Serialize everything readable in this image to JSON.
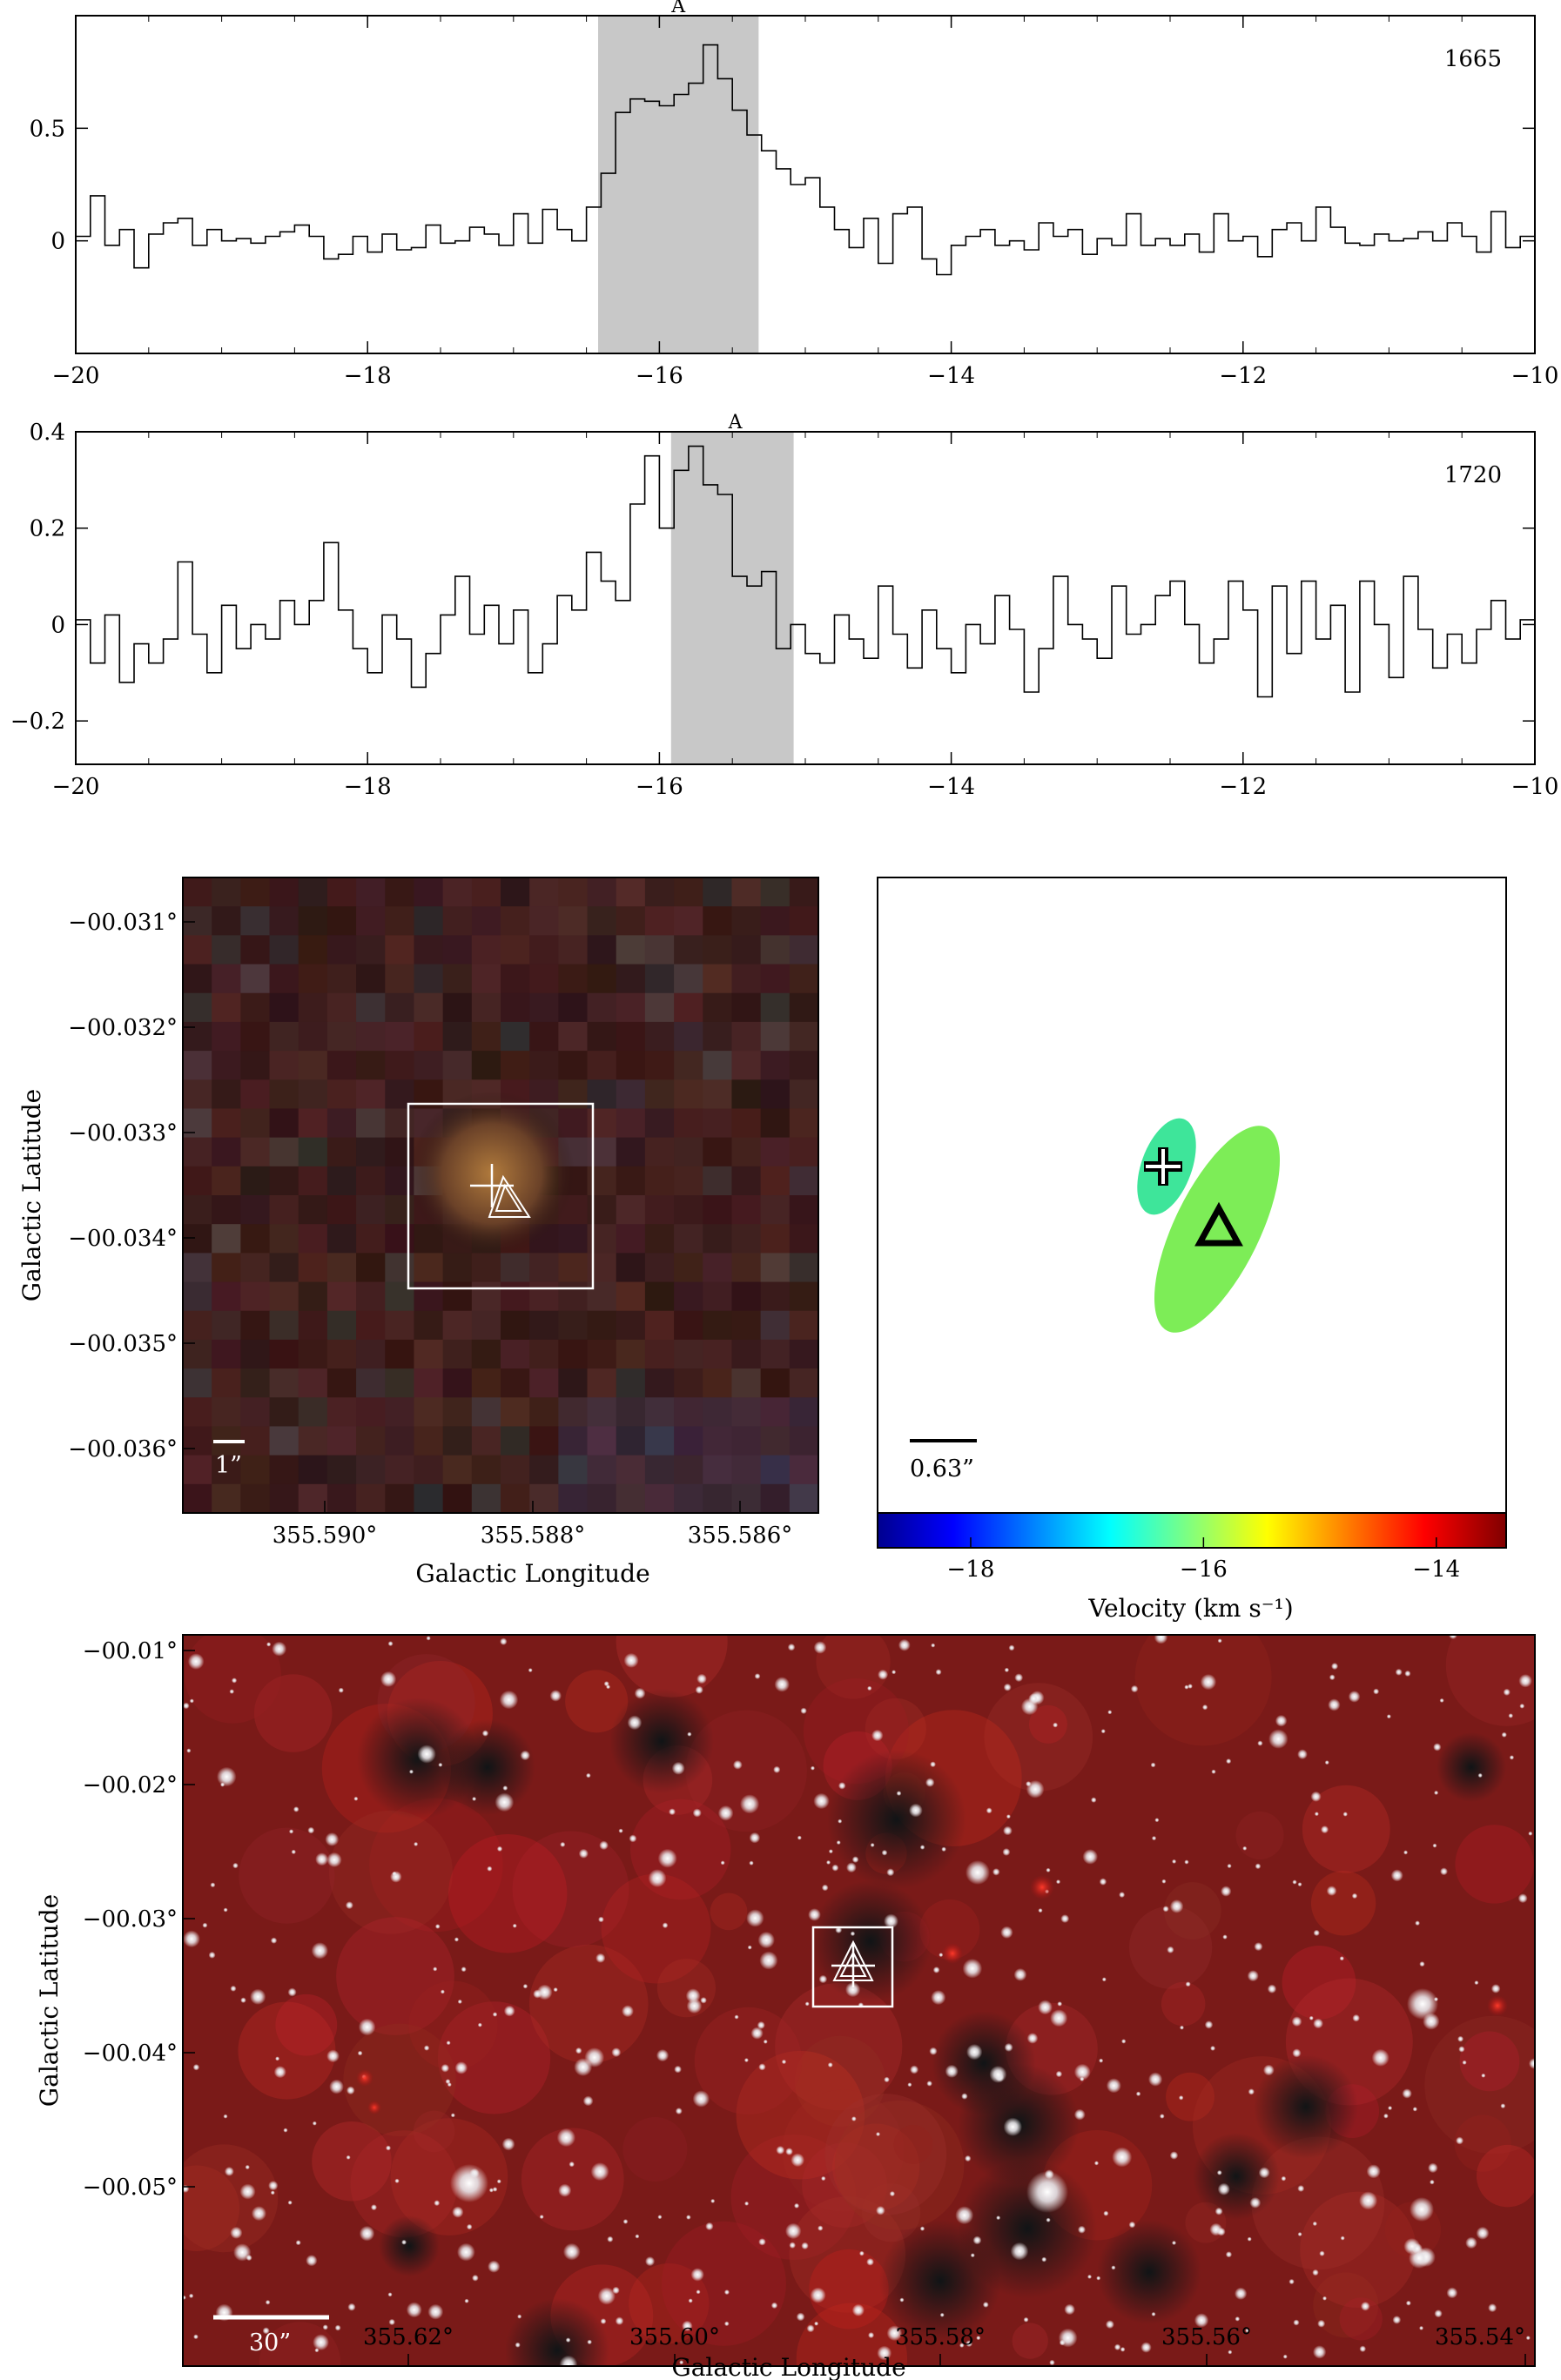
{
  "chart_data": [
    {
      "type": "line",
      "subtype": "step",
      "label": "1665",
      "xlim": [
        -20,
        -10
      ],
      "ylim": [
        -0.5,
        1.0
      ],
      "x_ticks": [
        -20,
        -18,
        -16,
        -14,
        -12,
        -10
      ],
      "x_tick_labels": [
        "−20",
        "−18",
        "−16",
        "−14",
        "−12",
        "−10"
      ],
      "y_ticks": [
        0,
        0.5
      ],
      "y_tick_labels": [
        "0",
        "0.5"
      ],
      "shaded_region": [
        -16.42,
        -15.32
      ],
      "annotation": {
        "text": "A",
        "x": -15.87
      },
      "x": [
        -20.0,
        -19.9,
        -19.8,
        -19.7,
        -19.6,
        -19.5,
        -19.4,
        -19.3,
        -19.2,
        -19.1,
        -19.0,
        -18.9,
        -18.8,
        -18.7,
        -18.6,
        -18.5,
        -18.4,
        -18.3,
        -18.2,
        -18.1,
        -18.0,
        -17.9,
        -17.8,
        -17.7,
        -17.6,
        -17.5,
        -17.4,
        -17.3,
        -17.2,
        -17.1,
        -17.0,
        -16.9,
        -16.8,
        -16.7,
        -16.6,
        -16.5,
        -16.4,
        -16.3,
        -16.2,
        -16.1,
        -16.0,
        -15.9,
        -15.8,
        -15.7,
        -15.6,
        -15.5,
        -15.4,
        -15.3,
        -15.2,
        -15.1,
        -15.0,
        -14.9,
        -14.8,
        -14.7,
        -14.6,
        -14.5,
        -14.4,
        -14.3,
        -14.2,
        -14.1,
        -14.0,
        -13.9,
        -13.8,
        -13.7,
        -13.6,
        -13.5,
        -13.4,
        -13.3,
        -13.2,
        -13.1,
        -13.0,
        -12.9,
        -12.8,
        -12.7,
        -12.6,
        -12.5,
        -12.4,
        -12.3,
        -12.2,
        -12.1,
        -12.0,
        -11.9,
        -11.8,
        -11.7,
        -11.6,
        -11.5,
        -11.4,
        -11.3,
        -11.2,
        -11.1,
        -11.0,
        -10.9,
        -10.8,
        -10.7,
        -10.6,
        -10.5,
        -10.4,
        -10.3,
        -10.2,
        -10.1
      ],
      "y": [
        0.02,
        0.2,
        -0.02,
        0.05,
        -0.12,
        0.03,
        0.08,
        0.1,
        -0.02,
        0.05,
        0.0,
        0.01,
        -0.01,
        0.02,
        0.04,
        0.07,
        0.02,
        -0.08,
        -0.06,
        0.02,
        -0.05,
        0.03,
        -0.04,
        -0.03,
        0.07,
        -0.01,
        0.0,
        0.06,
        0.03,
        -0.02,
        0.12,
        -0.01,
        0.14,
        0.05,
        0.0,
        0.15,
        0.3,
        0.57,
        0.63,
        0.62,
        0.6,
        0.65,
        0.7,
        0.87,
        0.72,
        0.58,
        0.47,
        0.4,
        0.32,
        0.25,
        0.28,
        0.15,
        0.05,
        -0.03,
        0.1,
        -0.1,
        0.12,
        0.15,
        -0.08,
        -0.15,
        -0.02,
        0.02,
        0.05,
        -0.02,
        0.0,
        -0.04,
        0.08,
        0.02,
        0.05,
        -0.06,
        0.01,
        -0.02,
        0.12,
        -0.02,
        0.01,
        -0.02,
        0.03,
        -0.05,
        0.12,
        0.0,
        0.02,
        -0.07,
        0.05,
        0.08,
        0.0,
        0.15,
        0.06,
        -0.01,
        -0.02,
        0.03,
        0.0,
        0.01,
        0.04,
        0.0,
        0.08,
        0.02,
        -0.05,
        0.13,
        -0.03,
        0.02
      ]
    },
    {
      "type": "line",
      "subtype": "step",
      "label": "1720",
      "xlim": [
        -20,
        -10
      ],
      "ylim": [
        -0.29,
        0.4
      ],
      "x_ticks": [
        -20,
        -18,
        -16,
        -14,
        -12,
        -10
      ],
      "x_tick_labels": [
        "−20",
        "−18",
        "−16",
        "−14",
        "−12",
        "−10"
      ],
      "y_ticks": [
        -0.2,
        0,
        0.2,
        0.4
      ],
      "y_tick_labels": [
        "−0.2",
        "0",
        "0.2",
        "0.4"
      ],
      "shaded_region": [
        -15.92,
        -15.08
      ],
      "annotation": {
        "text": "A",
        "x": -15.48
      },
      "x": [
        -20.0,
        -19.9,
        -19.8,
        -19.7,
        -19.6,
        -19.5,
        -19.4,
        -19.3,
        -19.2,
        -19.1,
        -19.0,
        -18.9,
        -18.8,
        -18.7,
        -18.6,
        -18.5,
        -18.4,
        -18.3,
        -18.2,
        -18.1,
        -18.0,
        -17.9,
        -17.8,
        -17.7,
        -17.6,
        -17.5,
        -17.4,
        -17.3,
        -17.2,
        -17.1,
        -17.0,
        -16.9,
        -16.8,
        -16.7,
        -16.6,
        -16.5,
        -16.4,
        -16.3,
        -16.2,
        -16.1,
        -16.0,
        -15.9,
        -15.8,
        -15.7,
        -15.6,
        -15.5,
        -15.4,
        -15.3,
        -15.2,
        -15.1,
        -15.0,
        -14.9,
        -14.8,
        -14.7,
        -14.6,
        -14.5,
        -14.4,
        -14.3,
        -14.2,
        -14.1,
        -14.0,
        -13.9,
        -13.8,
        -13.7,
        -13.6,
        -13.5,
        -13.4,
        -13.3,
        -13.2,
        -13.1,
        -13.0,
        -12.9,
        -12.8,
        -12.7,
        -12.6,
        -12.5,
        -12.4,
        -12.3,
        -12.2,
        -12.1,
        -12.0,
        -11.9,
        -11.8,
        -11.7,
        -11.6,
        -11.5,
        -11.4,
        -11.3,
        -11.2,
        -11.1,
        -11.0,
        -10.9,
        -10.8,
        -10.7,
        -10.6,
        -10.5,
        -10.4,
        -10.3,
        -10.2,
        -10.1
      ],
      "y": [
        0.01,
        -0.08,
        0.02,
        -0.12,
        -0.04,
        -0.08,
        -0.03,
        0.13,
        -0.02,
        -0.1,
        0.04,
        -0.05,
        0.0,
        -0.03,
        0.05,
        0.0,
        0.05,
        0.17,
        0.03,
        -0.05,
        -0.1,
        0.02,
        -0.03,
        -0.13,
        -0.06,
        0.02,
        0.1,
        -0.02,
        0.04,
        -0.04,
        0.03,
        -0.1,
        -0.04,
        0.06,
        0.03,
        0.15,
        0.09,
        0.05,
        0.25,
        0.35,
        0.2,
        0.32,
        0.37,
        0.29,
        0.27,
        0.1,
        0.08,
        0.11,
        -0.05,
        0.0,
        -0.06,
        -0.08,
        0.02,
        -0.03,
        -0.07,
        0.08,
        -0.02,
        -0.09,
        0.03,
        -0.05,
        -0.1,
        0.0,
        -0.04,
        0.06,
        -0.01,
        -0.14,
        -0.05,
        0.1,
        0.0,
        -0.03,
        -0.07,
        0.08,
        -0.02,
        0.0,
        0.06,
        0.09,
        0.0,
        -0.08,
        -0.03,
        0.09,
        0.03,
        -0.15,
        0.08,
        -0.06,
        0.09,
        -0.03,
        0.04,
        -0.14,
        0.09,
        0.0,
        -0.11,
        0.1,
        -0.01,
        -0.09,
        -0.02,
        -0.08,
        -0.01,
        0.05,
        -0.03,
        0.01
      ]
    },
    {
      "type": "image",
      "label": "1”",
      "xlabel": "Galactic Longitude",
      "ylabel": "Galactic Latitude",
      "x_tick_labels": [
        "355.590°",
        "355.588°",
        "355.586°"
      ],
      "y_tick_labels": [
        "−00.031°",
        "−00.032°",
        "−00.033°",
        "−00.034°",
        "−00.035°",
        "−00.036°"
      ],
      "markers": [
        "cross",
        "triangle",
        "box"
      ]
    },
    {
      "type": "scatter",
      "label": "0.63”",
      "colorbar": {
        "label": "Velocity (km s⁻¹)",
        "range": [
          -18.8,
          -13.4
        ],
        "ticks": [
          -18,
          -16,
          -14
        ],
        "tick_labels": [
          "−18",
          "−16",
          "−14"
        ]
      },
      "sources": [
        {
          "marker": "cross",
          "velocity": -16.3,
          "color": "#3ee59a"
        },
        {
          "marker": "triangle",
          "velocity": -15.9,
          "color": "#7ded57"
        }
      ]
    },
    {
      "type": "image",
      "label": "30”",
      "xlabel": "Galactic Longitude",
      "ylabel": "Galactic Latitude",
      "x_tick_labels": [
        "355.62°",
        "355.60°",
        "355.58°",
        "355.56°",
        "355.54°"
      ],
      "y_tick_labels": [
        "−00.01°",
        "−00.02°",
        "−00.03°",
        "−00.04°",
        "−00.05°"
      ],
      "markers": [
        "cross",
        "triangle",
        "box"
      ]
    }
  ]
}
